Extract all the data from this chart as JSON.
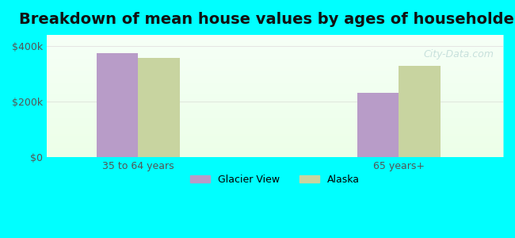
{
  "title": "Breakdown of mean house values by ages of householders",
  "categories": [
    "35 to 64 years",
    "65 years+"
  ],
  "series": [
    {
      "label": "Glacier View",
      "values": [
        375000,
        230000
      ],
      "color": "#b89cc8"
    },
    {
      "label": "Alaska",
      "values": [
        358000,
        328000
      ],
      "color": "#c8d4a0"
    }
  ],
  "yticks": [
    0,
    200000,
    400000
  ],
  "ytick_labels": [
    "$0",
    "$200k",
    "$400k"
  ],
  "ylim": [
    0,
    440000
  ],
  "background_color": "#00ffff",
  "plot_bg_color": "#eefff0",
  "title_fontsize": 14,
  "bar_width": 0.32,
  "group_positions": [
    1.0,
    3.0
  ],
  "watermark": "City-Data.com"
}
